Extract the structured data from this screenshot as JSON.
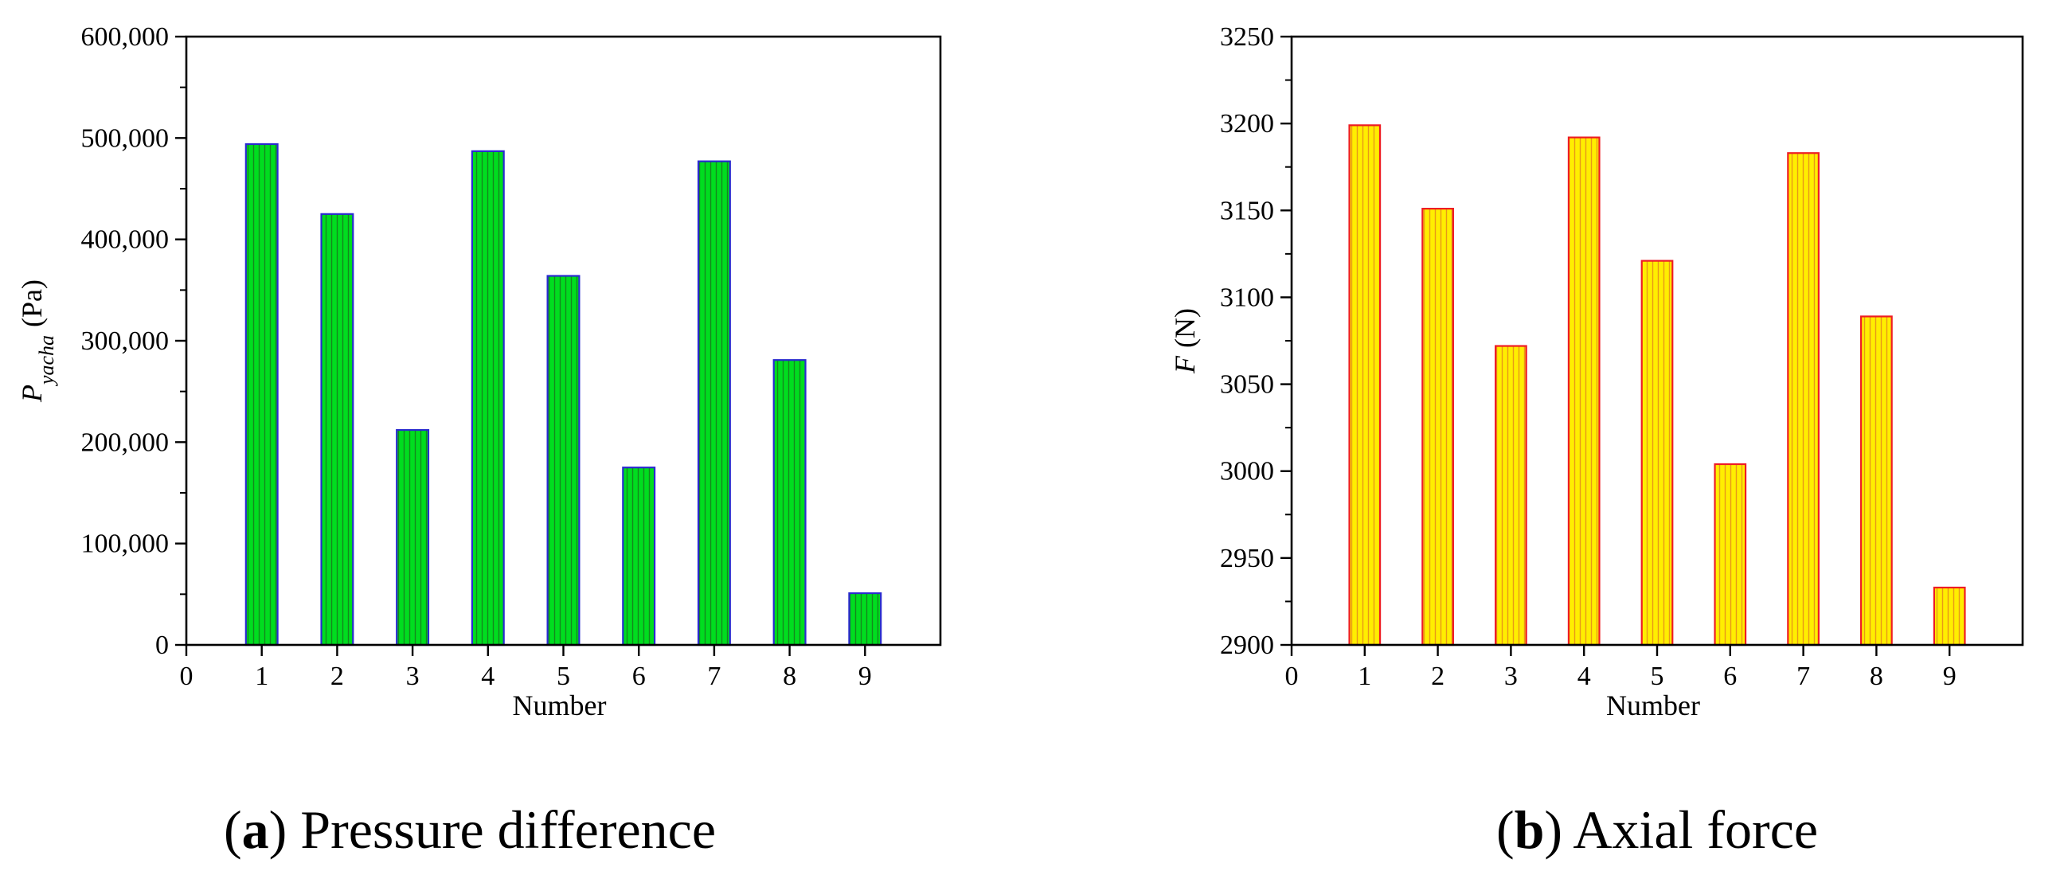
{
  "chart_data": [
    {
      "type": "bar",
      "panel": "a",
      "caption_letter": "a",
      "caption_text": "Pressure difference",
      "xlabel": "Number",
      "ylabel_var": "P",
      "ylabel_sub": "yacha",
      "ylabel_unit": "(Pa)",
      "xlim": [
        0,
        10
      ],
      "xticks": [
        "0",
        "1",
        "2",
        "3",
        "4",
        "5",
        "6",
        "7",
        "8",
        "9"
      ],
      "ylim": [
        0,
        600000
      ],
      "yticks": [
        "0",
        "100,000",
        "200,000",
        "300,000",
        "400,000",
        "500,000",
        "600,000"
      ],
      "categories": [
        1,
        2,
        3,
        4,
        5,
        6,
        7,
        8,
        9
      ],
      "values": [
        494000,
        425000,
        212000,
        487000,
        364000,
        175000,
        477000,
        281000,
        51000
      ],
      "fill_color": "#00dd1f",
      "stroke_color": "#2a2ad0",
      "hatch_color": "#1c6b1c"
    },
    {
      "type": "bar",
      "panel": "b",
      "caption_letter": "b",
      "caption_text": "Axial force",
      "xlabel": "Number",
      "ylabel_var": "F",
      "ylabel_sub": "",
      "ylabel_unit": "(N)",
      "xlim": [
        0,
        10
      ],
      "xticks": [
        "0",
        "1",
        "2",
        "3",
        "4",
        "5",
        "6",
        "7",
        "8",
        "9"
      ],
      "ylim": [
        2900,
        3250
      ],
      "yticks": [
        "2900",
        "2950",
        "3000",
        "3050",
        "3100",
        "3150",
        "3200",
        "3250"
      ],
      "categories": [
        1,
        2,
        3,
        4,
        5,
        6,
        7,
        8,
        9
      ],
      "values": [
        3199,
        3151,
        3072,
        3192,
        3121,
        3004,
        3183,
        3089,
        2933
      ],
      "fill_color": "#ffee00",
      "stroke_color": "#ee1c24",
      "hatch_color": "#e07a20"
    }
  ]
}
